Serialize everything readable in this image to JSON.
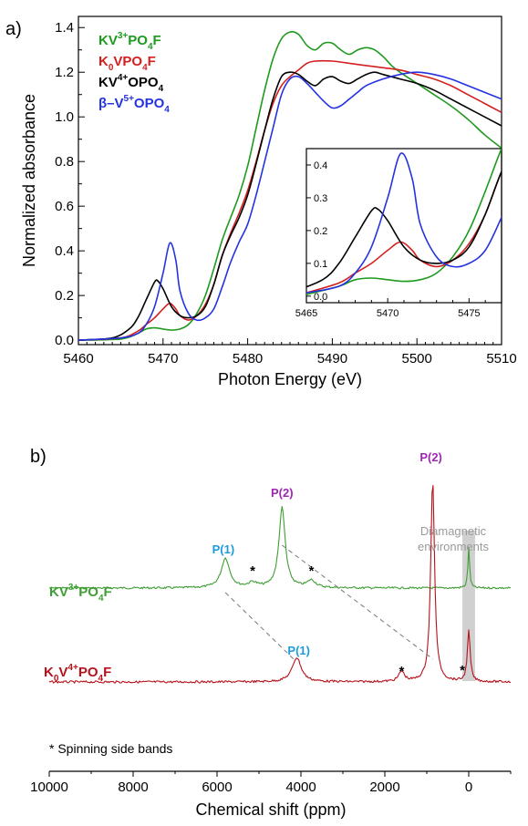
{
  "panel_a": {
    "label": "a)",
    "legend": [
      {
        "base": "KV",
        "sup": "3+",
        "mid": "PO",
        "sub": "4",
        "tail": "F",
        "color": "#1e9a1e"
      },
      {
        "base": "K",
        "sub0": "0",
        "mid0": "VPO",
        "sub": "4",
        "tail": "F",
        "color": "#d41f1f"
      },
      {
        "base": "KV",
        "sup": "4+",
        "mid": "OPO",
        "sub": "4",
        "tail": "",
        "color": "#000000"
      },
      {
        "base": "β–V",
        "sup": "5+",
        "mid": "OPO",
        "sub": "4",
        "tail": "",
        "color": "#2432e0"
      }
    ]
  },
  "panel_b": {
    "label": "b)",
    "series_labels": [
      {
        "text": "KV³⁺PO₄F",
        "color": "#3f9e34"
      },
      {
        "text": "K₀V⁴⁺PO₄F",
        "color": "#b5121b"
      }
    ],
    "peak_labels": {
      "green_p1": "P(1)",
      "green_p2": "P(2)",
      "red_p1": "P(1)",
      "red_p2": "P(2)"
    },
    "star": "*",
    "diamagnetic_label_1": "Diamagnetic",
    "diamagnetic_label_2": "environments",
    "footnote": "* Spinning side bands"
  },
  "chart_data": [
    {
      "type": "line",
      "xlabel": "Photon Energy (eV)",
      "ylabel": "Normalized absorbance",
      "xlim": [
        5460,
        5510
      ],
      "ylim": [
        -0.02,
        1.45
      ],
      "xticks": [
        5460,
        5470,
        5480,
        5490,
        5500,
        5510
      ],
      "yticks": [
        0.0,
        0.2,
        0.4,
        0.6,
        0.8,
        1.0,
        1.2,
        1.4
      ],
      "legend_position": "top-left",
      "series": [
        {
          "name": "KV3+PO4F",
          "color": "#1e9a1e",
          "points": [
            [
              5460,
              0
            ],
            [
              5465,
              0.005
            ],
            [
              5467,
              0.03
            ],
            [
              5468,
              0.05
            ],
            [
              5469,
              0.055
            ],
            [
              5470,
              0.05
            ],
            [
              5471,
              0.045
            ],
            [
              5472,
              0.05
            ],
            [
              5473,
              0.07
            ],
            [
              5474,
              0.12
            ],
            [
              5475,
              0.2
            ],
            [
              5476,
              0.32
            ],
            [
              5477,
              0.45
            ],
            [
              5478,
              0.55
            ],
            [
              5479,
              0.65
            ],
            [
              5480,
              0.78
            ],
            [
              5481,
              0.95
            ],
            [
              5482,
              1.12
            ],
            [
              5483,
              1.26
            ],
            [
              5484,
              1.35
            ],
            [
              5485,
              1.38
            ],
            [
              5486,
              1.37
            ],
            [
              5487,
              1.32
            ],
            [
              5488,
              1.3
            ],
            [
              5489,
              1.33
            ],
            [
              5490,
              1.33
            ],
            [
              5491,
              1.3
            ],
            [
              5492,
              1.28
            ],
            [
              5493,
              1.3
            ],
            [
              5494,
              1.31
            ],
            [
              5495,
              1.3
            ],
            [
              5496,
              1.27
            ],
            [
              5497,
              1.23
            ],
            [
              5498,
              1.2
            ],
            [
              5500,
              1.15
            ],
            [
              5502,
              1.1
            ],
            [
              5504,
              1.05
            ],
            [
              5506,
              0.99
            ],
            [
              5508,
              0.92
            ],
            [
              5510,
              0.86
            ]
          ]
        },
        {
          "name": "K0VPO4F",
          "color": "#d41f1f",
          "points": [
            [
              5460,
              0
            ],
            [
              5465,
              0.01
            ],
            [
              5467,
              0.04
            ],
            [
              5468,
              0.07
            ],
            [
              5469,
              0.1
            ],
            [
              5470,
              0.14
            ],
            [
              5470.8,
              0.165
            ],
            [
              5471.5,
              0.14
            ],
            [
              5472,
              0.11
            ],
            [
              5473,
              0.09
            ],
            [
              5474,
              0.11
            ],
            [
              5475,
              0.16
            ],
            [
              5476,
              0.25
            ],
            [
              5477,
              0.38
            ],
            [
              5478,
              0.48
            ],
            [
              5479,
              0.57
            ],
            [
              5480,
              0.67
            ],
            [
              5481,
              0.8
            ],
            [
              5482,
              0.94
            ],
            [
              5483,
              1.06
            ],
            [
              5484,
              1.14
            ],
            [
              5485,
              1.18
            ],
            [
              5486,
              1.21
            ],
            [
              5487,
              1.24
            ],
            [
              5488,
              1.25
            ],
            [
              5490,
              1.25
            ],
            [
              5492,
              1.24
            ],
            [
              5494,
              1.23
            ],
            [
              5496,
              1.22
            ],
            [
              5498,
              1.21
            ],
            [
              5500,
              1.19
            ],
            [
              5502,
              1.17
            ],
            [
              5504,
              1.14
            ],
            [
              5506,
              1.1
            ],
            [
              5508,
              1.06
            ],
            [
              5510,
              1.02
            ]
          ]
        },
        {
          "name": "KV4+OPO4",
          "color": "#000000",
          "points": [
            [
              5460,
              0
            ],
            [
              5464,
              0.01
            ],
            [
              5466,
              0.05
            ],
            [
              5467,
              0.1
            ],
            [
              5468,
              0.18
            ],
            [
              5469,
              0.26
            ],
            [
              5469.4,
              0.265
            ],
            [
              5470,
              0.23
            ],
            [
              5471,
              0.15
            ],
            [
              5472,
              0.11
            ],
            [
              5473,
              0.1
            ],
            [
              5474,
              0.11
            ],
            [
              5475,
              0.15
            ],
            [
              5476,
              0.25
            ],
            [
              5477,
              0.38
            ],
            [
              5478,
              0.47
            ],
            [
              5479,
              0.55
            ],
            [
              5480,
              0.65
            ],
            [
              5481,
              0.79
            ],
            [
              5482,
              0.94
            ],
            [
              5483,
              1.08
            ],
            [
              5484,
              1.18
            ],
            [
              5485,
              1.2
            ],
            [
              5486,
              1.19
            ],
            [
              5487,
              1.16
            ],
            [
              5488,
              1.14
            ],
            [
              5489,
              1.17
            ],
            [
              5490,
              1.18
            ],
            [
              5491,
              1.16
            ],
            [
              5492,
              1.15
            ],
            [
              5493,
              1.17
            ],
            [
              5494,
              1.19
            ],
            [
              5495,
              1.2
            ],
            [
              5496,
              1.19
            ],
            [
              5498,
              1.17
            ],
            [
              5500,
              1.15
            ],
            [
              5502,
              1.12
            ],
            [
              5504,
              1.08
            ],
            [
              5506,
              1.04
            ],
            [
              5508,
              1.0
            ],
            [
              5510,
              0.96
            ]
          ]
        },
        {
          "name": "β-V5+OPO4",
          "color": "#2432e0",
          "points": [
            [
              5460,
              0
            ],
            [
              5465,
              0.01
            ],
            [
              5467,
              0.03
            ],
            [
              5468,
              0.07
            ],
            [
              5469,
              0.15
            ],
            [
              5470,
              0.3
            ],
            [
              5470.8,
              0.435
            ],
            [
              5471.5,
              0.36
            ],
            [
              5472,
              0.22
            ],
            [
              5473,
              0.12
            ],
            [
              5474,
              0.09
            ],
            [
              5475,
              0.1
            ],
            [
              5476,
              0.14
            ],
            [
              5477,
              0.24
            ],
            [
              5478,
              0.35
            ],
            [
              5479,
              0.44
            ],
            [
              5480,
              0.52
            ],
            [
              5481,
              0.65
            ],
            [
              5482,
              0.8
            ],
            [
              5483,
              0.95
            ],
            [
              5484,
              1.1
            ],
            [
              5485,
              1.17
            ],
            [
              5486,
              1.18
            ],
            [
              5487,
              1.15
            ],
            [
              5488,
              1.11
            ],
            [
              5489,
              1.07
            ],
            [
              5490,
              1.04
            ],
            [
              5491,
              1.05
            ],
            [
              5492,
              1.08
            ],
            [
              5493,
              1.11
            ],
            [
              5494,
              1.14
            ],
            [
              5496,
              1.17
            ],
            [
              5498,
              1.19
            ],
            [
              5500,
              1.2
            ],
            [
              5502,
              1.19
            ],
            [
              5504,
              1.17
            ],
            [
              5506,
              1.14
            ],
            [
              5508,
              1.11
            ],
            [
              5510,
              1.08
            ]
          ]
        }
      ],
      "inset": {
        "xlim": [
          5465,
          5477
        ],
        "ylim": [
          -0.02,
          0.45
        ],
        "xticks": [
          5465,
          5470,
          5475
        ],
        "yticks": [
          0.0,
          0.1,
          0.2,
          0.3,
          0.4
        ]
      }
    },
    {
      "type": "line",
      "xlabel": "Chemical shift (ppm)",
      "xlim": [
        10000,
        -1000
      ],
      "xticks": [
        10000,
        8000,
        6000,
        4000,
        2000,
        0
      ],
      "series": [
        {
          "name": "KV3+PO4F",
          "color": "#3f9e34",
          "peaks": [
            {
              "pos": 5800,
              "height": 0.37,
              "width": 120
            },
            {
              "pos": 5150,
              "height": 0.06,
              "width": 120
            },
            {
              "pos": 4450,
              "height": 1.0,
              "width": 90
            },
            {
              "pos": 3750,
              "height": 0.09,
              "width": 120
            },
            {
              "pos": 0,
              "height": 0.5,
              "width": 25
            }
          ]
        },
        {
          "name": "K0V4+PO4F",
          "color": "#b5121b",
          "peaks": [
            {
              "pos": 4100,
              "height": 0.12,
              "width": 130
            },
            {
              "pos": 1600,
              "height": 0.05,
              "width": 80
            },
            {
              "pos": 860,
              "height": 1.0,
              "width": 55
            },
            {
              "pos": 0,
              "height": 0.25,
              "width": 40
            }
          ]
        }
      ]
    }
  ]
}
